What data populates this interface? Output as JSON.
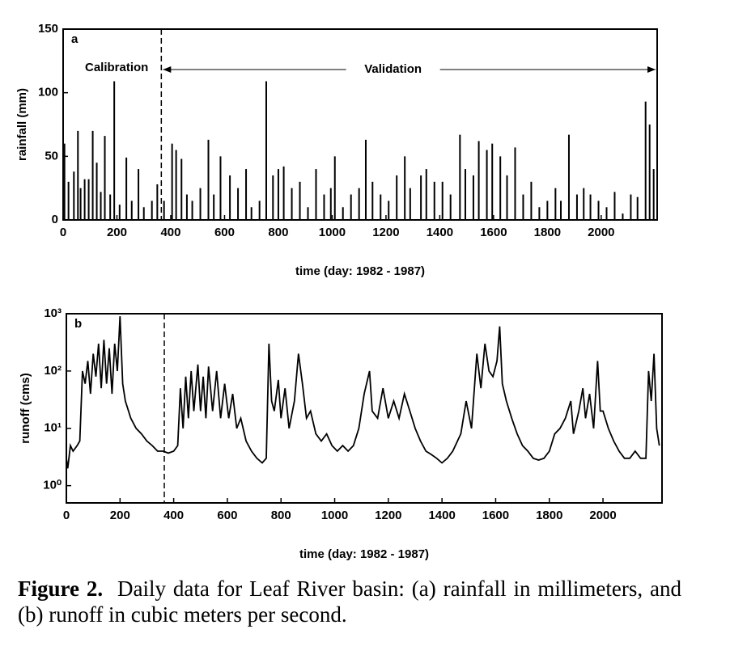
{
  "chart_data": [
    {
      "type": "bar",
      "panel": "a",
      "xlabel": "time (day: 1982 - 1987)",
      "ylabel": "rainfall (mm)",
      "color": "#000000",
      "annotations": {
        "left": "Calibration",
        "right": "Validation",
        "split_x": 365
      },
      "x": [
        5,
        20,
        40,
        55,
        65,
        80,
        95,
        110,
        125,
        140,
        155,
        175,
        190,
        210,
        235,
        255,
        280,
        300,
        330,
        350,
        375,
        405,
        420,
        440,
        460,
        480,
        510,
        540,
        560,
        585,
        620,
        650,
        680,
        700,
        730,
        755,
        780,
        800,
        820,
        850,
        880,
        910,
        940,
        970,
        995,
        1010,
        1040,
        1070,
        1100,
        1125,
        1150,
        1180,
        1210,
        1240,
        1270,
        1290,
        1330,
        1350,
        1380,
        1410,
        1440,
        1475,
        1495,
        1525,
        1545,
        1575,
        1595,
        1625,
        1650,
        1680,
        1710,
        1740,
        1770,
        1800,
        1830,
        1850,
        1880,
        1910,
        1935,
        1960,
        1990,
        2020,
        2050,
        2080,
        2110,
        2135,
        2165,
        2180,
        2195
      ],
      "values": [
        60,
        30,
        38,
        70,
        25,
        32,
        32,
        70,
        45,
        22,
        66,
        20,
        109,
        12,
        49,
        15,
        40,
        10,
        15,
        28,
        15,
        60,
        55,
        48,
        20,
        15,
        25,
        63,
        20,
        50,
        35,
        25,
        40,
        10,
        15,
        109,
        35,
        40,
        42,
        25,
        30,
        10,
        40,
        20,
        25,
        50,
        10,
        20,
        25,
        63,
        30,
        20,
        15,
        35,
        50,
        25,
        35,
        40,
        30,
        30,
        20,
        67,
        40,
        35,
        62,
        55,
        60,
        50,
        35,
        57,
        20,
        30,
        10,
        15,
        25,
        15,
        67,
        20,
        25,
        20,
        15,
        10,
        22,
        5,
        20,
        18,
        93,
        75,
        40
      ],
      "xlim": [
        0,
        2208
      ],
      "ylim": [
        0,
        150
      ],
      "xticks": [
        0,
        200,
        400,
        600,
        800,
        1000,
        1200,
        1400,
        1600,
        1800,
        2000
      ],
      "yticks": [
        0,
        50,
        100,
        150
      ]
    },
    {
      "type": "line",
      "panel": "b",
      "xlabel": "time (day: 1982 - 1987)",
      "ylabel": "runoff (cms)",
      "color": "#000000",
      "log_y": true,
      "annotations": {
        "split_x": 365
      },
      "x": [
        0,
        5,
        15,
        25,
        40,
        50,
        60,
        70,
        80,
        90,
        100,
        110,
        120,
        130,
        140,
        150,
        160,
        170,
        180,
        190,
        200,
        210,
        220,
        240,
        260,
        280,
        300,
        320,
        340,
        360,
        380,
        400,
        415,
        425,
        435,
        445,
        455,
        465,
        475,
        490,
        500,
        510,
        520,
        530,
        545,
        560,
        575,
        590,
        605,
        620,
        635,
        650,
        670,
        690,
        710,
        730,
        745,
        755,
        765,
        775,
        790,
        800,
        815,
        830,
        850,
        865,
        880,
        895,
        910,
        930,
        950,
        970,
        990,
        1010,
        1030,
        1050,
        1070,
        1090,
        1110,
        1130,
        1140,
        1160,
        1180,
        1200,
        1220,
        1240,
        1260,
        1280,
        1300,
        1320,
        1340,
        1360,
        1380,
        1400,
        1420,
        1440,
        1470,
        1490,
        1510,
        1530,
        1545,
        1560,
        1575,
        1590,
        1605,
        1615,
        1625,
        1640,
        1660,
        1680,
        1700,
        1720,
        1740,
        1760,
        1780,
        1800,
        1820,
        1840,
        1860,
        1880,
        1890,
        1910,
        1925,
        1935,
        1950,
        1965,
        1980,
        1990,
        2000,
        2020,
        2040,
        2060,
        2080,
        2100,
        2120,
        2140,
        2160,
        2170,
        2180,
        2190,
        2200,
        2210
      ],
      "values": [
        3,
        2,
        5,
        4,
        5,
        6,
        100,
        60,
        150,
        40,
        200,
        80,
        300,
        50,
        350,
        60,
        250,
        40,
        300,
        100,
        900,
        60,
        30,
        15,
        10,
        8,
        6,
        5,
        4,
        4,
        3.7,
        4,
        5,
        50,
        10,
        80,
        15,
        100,
        20,
        130,
        20,
        80,
        15,
        120,
        20,
        100,
        15,
        60,
        15,
        40,
        10,
        15,
        6,
        4,
        3,
        2.5,
        3,
        300,
        30,
        20,
        70,
        15,
        50,
        10,
        30,
        200,
        60,
        15,
        20,
        8,
        6,
        8,
        5,
        4,
        5,
        4,
        5,
        10,
        40,
        100,
        20,
        15,
        50,
        15,
        30,
        15,
        40,
        20,
        10,
        6,
        4,
        3.5,
        3,
        2.5,
        3,
        4,
        8,
        30,
        10,
        200,
        50,
        300,
        100,
        80,
        150,
        600,
        60,
        30,
        15,
        8,
        5,
        4,
        3,
        2.8,
        3,
        4,
        8,
        10,
        15,
        30,
        8,
        20,
        50,
        15,
        40,
        10,
        150,
        20,
        20,
        10,
        6,
        4,
        3,
        3,
        4,
        3,
        3,
        100,
        30,
        200,
        10,
        5
      ],
      "xlim": [
        0,
        2220
      ],
      "ylim": [
        0.5,
        1000
      ],
      "xticks": [
        0,
        200,
        400,
        600,
        800,
        1000,
        1200,
        1400,
        1600,
        1800,
        2000
      ],
      "yticks": [
        {
          "value": 1,
          "label": "10⁰"
        },
        {
          "value": 10,
          "label": "10¹"
        },
        {
          "value": 100,
          "label": "10²"
        },
        {
          "value": 1000,
          "label": "10³"
        }
      ]
    }
  ],
  "caption": {
    "label": "Figure 2.",
    "text": "Daily data for Leaf River basin: (a) rainfall in millimeters, and (b) runoff in cubic meters per second."
  }
}
